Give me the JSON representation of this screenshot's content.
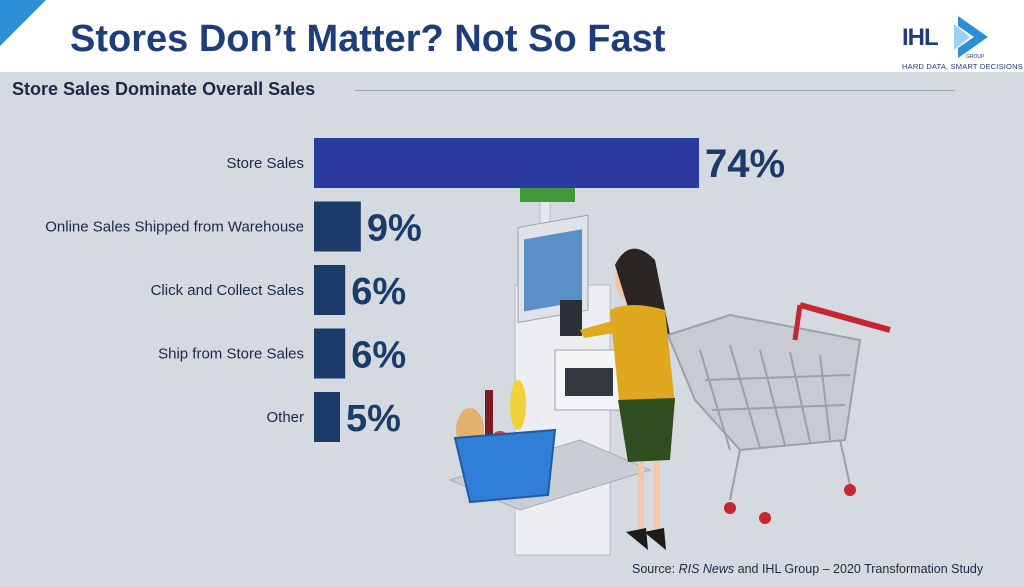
{
  "header": {
    "title": "Stores Don’t Matter?  Not So Fast",
    "logo_text": "IHL",
    "logo_subtext": "GROUP",
    "logo_tagline": "HARD DATA, SMART DECISIONS"
  },
  "subtitle": "Store Sales Dominate Overall Sales",
  "colors": {
    "primary_bar": "#2b3a9e",
    "secondary_bar": "#1c3a6a",
    "label_text": "#1a2a44",
    "value_text": "#1c3a6a"
  },
  "illustration": {
    "icon_names": [
      "self-checkout-kiosk-icon",
      "shopper-woman-icon",
      "shopping-cart-icon",
      "grocery-basket-icon"
    ]
  },
  "chart_data": {
    "type": "bar",
    "orientation": "horizontal",
    "title": "Store Sales Dominate Overall Sales",
    "categories": [
      "Store Sales",
      "Online Sales Shipped from Warehouse",
      "Click and Collect Sales",
      "Ship from Store Sales",
      "Other"
    ],
    "values": [
      74,
      9,
      6,
      6,
      5
    ],
    "value_labels": [
      "74%",
      "9%",
      "6%",
      "6%",
      "5%"
    ],
    "unit": "%",
    "xlim": [
      0,
      100
    ],
    "grid": false,
    "legend": "none"
  },
  "source": {
    "prefix": "Source: ",
    "publication": "RIS News",
    "suffix": " and IHL Group – 2020 Transformation Study"
  }
}
